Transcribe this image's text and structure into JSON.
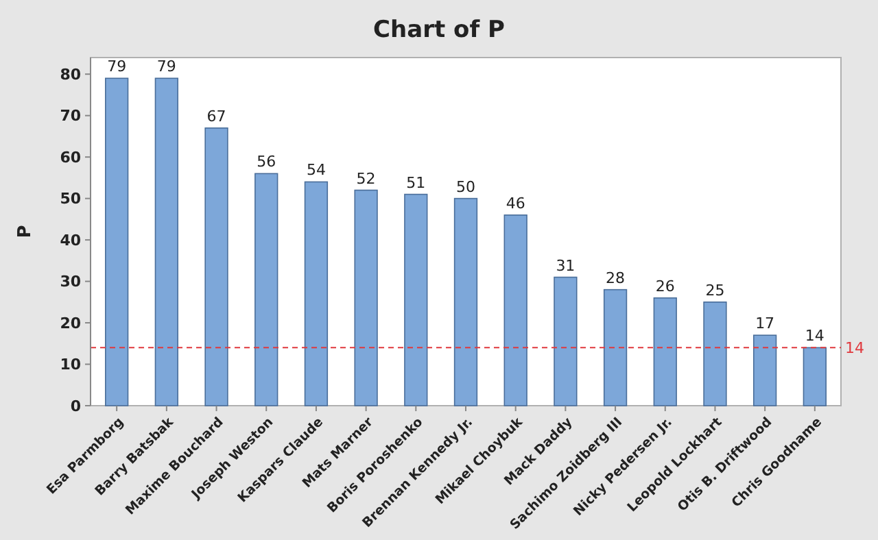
{
  "chart_data": {
    "type": "bar",
    "title": "Chart of P",
    "ylabel": "P",
    "categories": [
      "Esa Parmborg",
      "Barry Batsbak",
      "Maxime Bouchard",
      "Joseph Weston",
      "Kaspars Claude",
      "Mats Marner",
      "Boris Poroshenko",
      "Brennan Kennedy Jr.",
      "Mikael Choybuk",
      "Mack Daddy",
      "Sachimo Zoidberg III",
      "Nicky Pedersen Jr.",
      "Leopold Lockhart",
      "Otis B. Driftwood",
      "Chris Goodname"
    ],
    "values": [
      79,
      79,
      67,
      56,
      54,
      52,
      51,
      50,
      46,
      31,
      28,
      26,
      25,
      17,
      14
    ],
    "color": "#7da7d9",
    "ylim": [
      0,
      84
    ],
    "yticks": [
      0,
      10,
      20,
      30,
      40,
      50,
      60,
      70,
      80
    ],
    "data_labels": true,
    "ref_lines": [
      {
        "axis": "y",
        "value": 14,
        "label": "14",
        "color": "#e0393e",
        "line_style": "dashed"
      }
    ]
  }
}
